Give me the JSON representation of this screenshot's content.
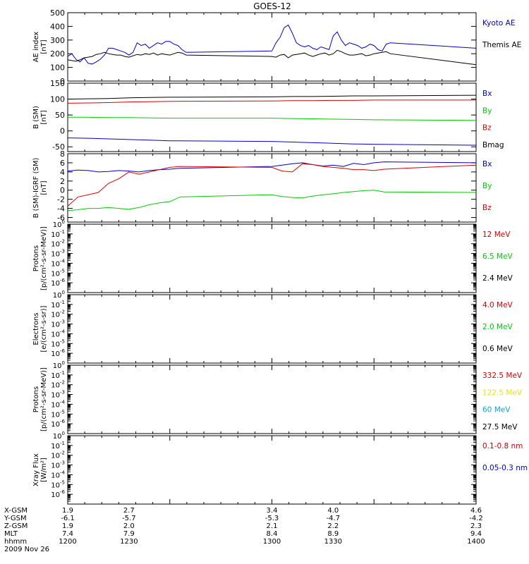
{
  "title": "GOES-12",
  "colors": {
    "black": "#000000",
    "blue": "#0000cc",
    "red": "#dd0000",
    "green": "#00cc00",
    "yellow": "#e8e800",
    "cyan": "#00aadd"
  },
  "chart_data": [
    {
      "type": "line",
      "name": "ae",
      "ylabel": [
        "AE index",
        "[nT]"
      ],
      "ylim": [
        0,
        500
      ],
      "yticks": [
        0,
        100,
        200,
        300,
        400,
        500
      ],
      "x": [
        1200,
        1202,
        1204,
        1206,
        1208,
        1210,
        1212,
        1214,
        1216,
        1218,
        1220,
        1222,
        1224,
        1226,
        1228,
        1230,
        1232,
        1234,
        1236,
        1238,
        1240,
        1242,
        1244,
        1246,
        1248,
        1250,
        1252,
        1254,
        1256,
        1258,
        1300,
        1302,
        1304,
        1306,
        1308,
        1310,
        1312,
        1314,
        1316,
        1318,
        1320,
        1322,
        1324,
        1326,
        1328,
        1330,
        1332,
        1334,
        1336,
        1338,
        1340,
        1342,
        1344,
        1346,
        1348,
        1350,
        1352,
        1354,
        1356,
        1358,
        1400
      ],
      "series": [
        {
          "name": "Kyoto AE",
          "color": "#0000cc",
          "values": [
            180,
            200,
            160,
            140,
            170,
            130,
            125,
            140,
            160,
            190,
            240,
            240,
            230,
            220,
            210,
            190,
            210,
            280,
            260,
            270,
            240,
            260,
            280,
            270,
            290,
            290,
            270,
            260,
            230,
            210,
            220,
            280,
            320,
            390,
            410,
            350,
            280,
            260,
            250,
            260,
            240,
            230,
            250,
            240,
            230,
            330,
            360,
            300,
            260,
            280,
            270,
            260,
            240,
            250,
            270,
            260,
            230,
            220,
            270,
            280,
            240
          ]
        },
        {
          "name": "Themis AE",
          "color": "#000000",
          "values": [
            155,
            150,
            145,
            155,
            170,
            175,
            180,
            195,
            200,
            210,
            200,
            195,
            190,
            190,
            180,
            175,
            185,
            195,
            190,
            200,
            195,
            205,
            190,
            200,
            195,
            190,
            200,
            210,
            205,
            190,
            180,
            175,
            190,
            195,
            170,
            190,
            195,
            200,
            205,
            190,
            180,
            190,
            200,
            205,
            190,
            200,
            225,
            215,
            200,
            190,
            190,
            195,
            200,
            185,
            190,
            200,
            205,
            210,
            215,
            200,
            120
          ]
        }
      ],
      "legend": [
        "Kyoto AE",
        "Themis AE"
      ],
      "legend_colors": [
        "#0000cc",
        "#000000"
      ]
    },
    {
      "type": "line",
      "name": "b-field",
      "ylabel": [
        "B (SM)",
        "[nT]"
      ],
      "ylim": [
        -65,
        150
      ],
      "yticks": [
        -50,
        0,
        50,
        100,
        150
      ],
      "x": [
        1200,
        1210,
        1220,
        1230,
        1240,
        1250,
        1300,
        1310,
        1320,
        1330,
        1340,
        1350,
        1400
      ],
      "series": [
        {
          "name": "Bx",
          "color": "#0000cc",
          "values": [
            -22,
            -23,
            -25,
            -27,
            -29,
            -31,
            -33,
            -35,
            -37,
            -39,
            -41,
            -42,
            -45
          ]
        },
        {
          "name": "By",
          "color": "#00cc00",
          "values": [
            43,
            43,
            42,
            42,
            41,
            40,
            40,
            39,
            38,
            37,
            36,
            35,
            33
          ]
        },
        {
          "name": "Bz",
          "color": "#dd0000",
          "values": [
            87,
            88,
            89,
            91,
            92,
            93,
            94,
            95,
            95,
            96,
            96,
            97,
            97
          ]
        },
        {
          "name": "Bmag",
          "color": "#000000",
          "values": [
            100,
            101,
            102,
            104,
            105,
            106,
            107,
            108,
            108,
            109,
            110,
            110,
            112
          ]
        }
      ],
      "legend": [
        "Bx",
        "By",
        "Bz",
        "Bmag"
      ],
      "legend_colors": [
        "#0000cc",
        "#00cc00",
        "#dd0000",
        "#000000"
      ]
    },
    {
      "type": "line",
      "name": "b-minus-igrf",
      "ylabel": [
        "B (SM)-IGRF (SM)",
        "[nT]"
      ],
      "ylim": [
        -7,
        8
      ],
      "yticks": [
        -6,
        -4,
        -2,
        0,
        2,
        4,
        6,
        8
      ],
      "x": [
        1200,
        1205,
        1210,
        1215,
        1220,
        1225,
        1230,
        1235,
        1240,
        1245,
        1250,
        1255,
        1300,
        1305,
        1310,
        1315,
        1320,
        1325,
        1330,
        1335,
        1340,
        1345,
        1350,
        1355,
        1400
      ],
      "series": [
        {
          "name": "Bx",
          "color": "#0000cc",
          "values": [
            4.2,
            4.4,
            4.3,
            4.0,
            4.1,
            4.3,
            4.2,
            4.0,
            4.3,
            4.5,
            4.6,
            4.8,
            5.2,
            5.5,
            5.8,
            6.0,
            5.6,
            5.3,
            5.5,
            5.2,
            5.9,
            5.6,
            6.0,
            6.2,
            6.0
          ]
        },
        {
          "name": "By",
          "color": "#00cc00",
          "values": [
            -4.5,
            -4.3,
            -4.0,
            -4.0,
            -3.8,
            -4.0,
            -4.2,
            -3.8,
            -3.2,
            -2.8,
            -2.5,
            -1.5,
            -1.0,
            -1.4,
            -1.6,
            -1.7,
            -1.3,
            -1.0,
            -0.8,
            -0.5,
            -0.3,
            -0.1,
            0.0,
            -0.4,
            -0.5
          ]
        },
        {
          "name": "Bz",
          "color": "#dd0000",
          "values": [
            -3.5,
            -1.5,
            -1.0,
            -0.5,
            1.5,
            2.5,
            4.0,
            3.5,
            4.0,
            4.5,
            5.0,
            5.2,
            5.0,
            4.2,
            4.0,
            5.8,
            5.6,
            5.2,
            5.0,
            4.8,
            4.5,
            4.5,
            4.3,
            4.6,
            5.5
          ]
        }
      ],
      "legend": [
        "Bx",
        "By",
        "Bz"
      ],
      "legend_colors": [
        "#0000cc",
        "#00cc00",
        "#dd0000"
      ]
    },
    {
      "type": "line",
      "name": "protons-low",
      "ylabel": [
        "Protons",
        "[p/(cm²-s-sr-MeV)]"
      ],
      "yscale": "log",
      "ylim_exp": [
        -7,
        0
      ],
      "ytick_exps": [
        -6,
        -5,
        -4,
        -3,
        -2,
        -1,
        0
      ],
      "series": [],
      "legend": [
        "12 MeV",
        "6.5 MeV",
        "2.4 MeV"
      ],
      "legend_colors": [
        "#dd0000",
        "#00cc00",
        "#000000"
      ]
    },
    {
      "type": "line",
      "name": "electrons",
      "ylabel": [
        "Electrons",
        "[e/(cm²-s-sr)]"
      ],
      "yscale": "log",
      "ylim_exp": [
        -7,
        0
      ],
      "ytick_exps": [
        -6,
        -5,
        -4,
        -3,
        -2,
        -1,
        0
      ],
      "series": [],
      "legend": [
        "4.0 MeV",
        "2.0 MeV",
        "0.6 MeV"
      ],
      "legend_colors": [
        "#dd0000",
        "#00cc00",
        "#000000"
      ]
    },
    {
      "type": "line",
      "name": "protons-high",
      "ylabel": [
        "Protons",
        "[p/(cm²-s-sr-MeV)]"
      ],
      "yscale": "log",
      "ylim_exp": [
        -7,
        0
      ],
      "ytick_exps": [
        -6,
        -5,
        -4,
        -3,
        -2,
        -1,
        0
      ],
      "series": [],
      "legend": [
        "332.5 MeV",
        "122.5 MeV",
        "60 MeV",
        "27.5 MeV"
      ],
      "legend_colors": [
        "#dd0000",
        "#e8e800",
        "#00aadd",
        "#000000"
      ]
    },
    {
      "type": "line",
      "name": "xray",
      "ylabel": [
        "Xray Flux",
        "[W/m²]"
      ],
      "yscale": "log",
      "ylim_exp": [
        -7,
        0
      ],
      "ytick_exps": [
        -6,
        -5,
        -4,
        -3,
        -2,
        -1,
        0
      ],
      "series": [],
      "legend": [
        "0.1-0.8 nm",
        "0.05-0.3 nm"
      ],
      "legend_colors": [
        "#dd0000",
        "#0000cc"
      ]
    }
  ],
  "x_axis": {
    "range": [
      1200,
      1400
    ],
    "rows": [
      {
        "label": "X-GSM",
        "values": [
          "1.9",
          "2.7",
          "3.4",
          "4.0",
          "4.6"
        ]
      },
      {
        "label": "Y-GSM",
        "values": [
          "-6.1",
          "-5.7",
          "-5.3",
          "-4.7",
          "-4.2"
        ]
      },
      {
        "label": "Z-GSM",
        "values": [
          "1.9",
          "2.0",
          "2.1",
          "2.2",
          "2.3"
        ]
      },
      {
        "label": "MLT",
        "values": [
          "7.4",
          "7.9",
          "8.4",
          "8.9",
          "9.4"
        ]
      },
      {
        "label": "hhmm",
        "values": [
          "1200",
          "1230",
          "1300",
          "1330",
          "1400"
        ]
      }
    ],
    "date": "2009 Nov 26"
  }
}
